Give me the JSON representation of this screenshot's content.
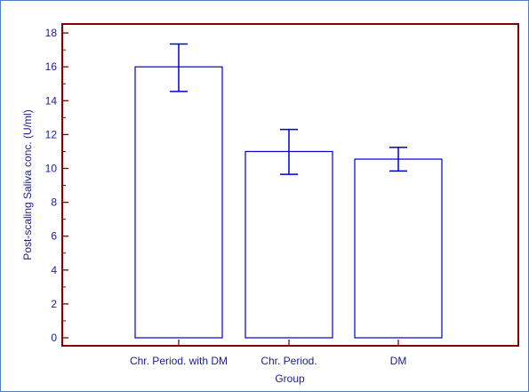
{
  "chart_data": {
    "type": "bar",
    "title": "",
    "xlabel": "Group",
    "ylabel": "Post-scaling Saliva conc. (U/ml)",
    "categories": [
      "Chr. Period. with DM",
      "Chr. Period.",
      "DM"
    ],
    "values": [
      16.0,
      11.0,
      10.55
    ],
    "error_low": [
      14.55,
      9.65,
      9.85
    ],
    "error_high": [
      17.35,
      12.3,
      11.25
    ],
    "yticks": [
      "0",
      "2",
      "4",
      "6",
      "8",
      "10",
      "12",
      "14",
      "16",
      "18"
    ],
    "ylim": [
      -0.5,
      19
    ],
    "grid": false,
    "legend": "none",
    "colors": {
      "axis": "#800000",
      "bar_outline": "#0000cc",
      "error_bar": "#0000cc",
      "text": "#1c1c8c",
      "frame": "#4f81bd"
    }
  }
}
